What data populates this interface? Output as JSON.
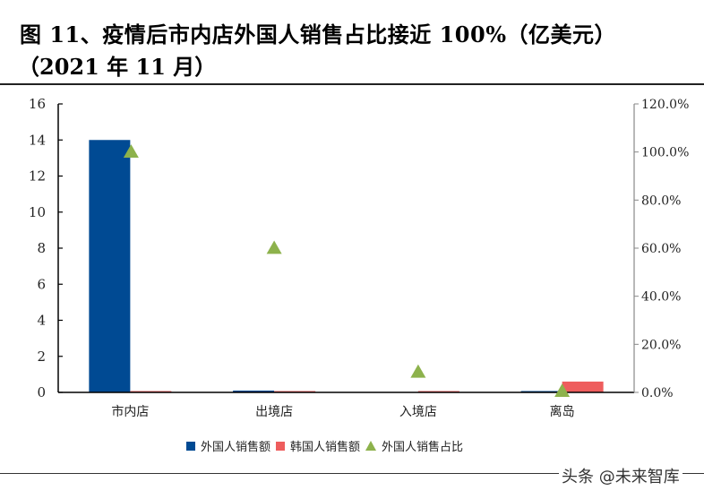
{
  "title": {
    "line1": "图 11、疫情后市内店外国人销售占比接近 100%（亿美元）",
    "line2": "（2021 年 11 月）"
  },
  "watermark": "头条 @未来智库",
  "colors": {
    "foreign_sales": "#004a93",
    "korean_sales": "#ee5d5d",
    "foreign_share": "#8db24c",
    "axis": "#000000",
    "right_axis": "#888888"
  },
  "legend": [
    {
      "label": "外国人销售额",
      "shape": "square",
      "color": "#004a93"
    },
    {
      "label": "韩国人销售额",
      "shape": "square",
      "color": "#ee5d5d"
    },
    {
      "label": "外国人销售占比",
      "shape": "triangle",
      "color": "#8db24c"
    }
  ],
  "chart_data": {
    "type": "bar",
    "title": "图 11、疫情后市内店外国人销售占比接近 100%（亿美元）（2021 年 11 月）",
    "categories": [
      "市内店",
      "出境店",
      "入境店",
      "离岛"
    ],
    "series": [
      {
        "name": "外国人销售额",
        "type": "bar",
        "axis": "left",
        "color": "#004a93",
        "values": [
          14.0,
          0.1,
          0.0,
          0.05
        ]
      },
      {
        "name": "韩国人销售额",
        "type": "bar",
        "axis": "left",
        "color": "#ee5d5d",
        "values": [
          0.05,
          0.05,
          0.05,
          0.6
        ]
      },
      {
        "name": "外国人销售占比",
        "type": "scatter",
        "marker": "triangle",
        "axis": "right",
        "color": "#8db24c",
        "values": [
          1.0,
          0.6,
          0.085,
          0.005
        ]
      }
    ],
    "xlabel": "",
    "ylabel": "亿美元",
    "ylim": [
      0,
      16
    ],
    "yticks": [
      "0",
      "2",
      "4",
      "6",
      "8",
      "10",
      "12",
      "14",
      "16"
    ],
    "y2lim": [
      0,
      1.2
    ],
    "y2ticks": [
      "0.0%",
      "20.0%",
      "40.0%",
      "60.0%",
      "80.0%",
      "100.0%",
      "120.0%"
    ],
    "grid": false,
    "legend_position": "bottom"
  }
}
